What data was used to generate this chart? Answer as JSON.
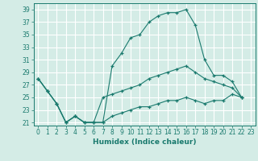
{
  "xlabel": "Humidex (Indice chaleur)",
  "bg_color": "#d4ece6",
  "grid_color": "#ffffff",
  "line_color": "#1a7a6e",
  "ylim": [
    20.5,
    40
  ],
  "xlim": [
    -0.5,
    23.5
  ],
  "yticks": [
    21,
    23,
    25,
    27,
    29,
    31,
    33,
    35,
    37,
    39
  ],
  "xticks": [
    0,
    1,
    2,
    3,
    4,
    5,
    6,
    7,
    8,
    9,
    10,
    11,
    12,
    13,
    14,
    15,
    16,
    17,
    18,
    19,
    20,
    21,
    22,
    23
  ],
  "series_max": [
    28,
    26,
    24,
    21,
    22,
    21,
    21,
    21,
    30,
    32,
    34.5,
    35,
    37,
    38,
    38.5,
    38.5,
    39,
    36.5,
    31,
    28.5,
    28.5,
    27.5,
    25
  ],
  "series_avg": [
    28,
    26,
    24,
    21,
    22,
    21,
    21,
    25,
    25.5,
    26,
    26.5,
    27,
    28,
    28.5,
    29,
    29.5,
    30,
    29,
    28,
    27.5,
    27,
    26.5,
    25
  ],
  "series_min": [
    28,
    26,
    24,
    21,
    22,
    21,
    21,
    21,
    22,
    22.5,
    23,
    23.5,
    23.5,
    24,
    24.5,
    24.5,
    25,
    24.5,
    24,
    24.5,
    24.5,
    25.5,
    25
  ],
  "xlabel_fontsize": 6.5,
  "tick_fontsize": 5.5
}
